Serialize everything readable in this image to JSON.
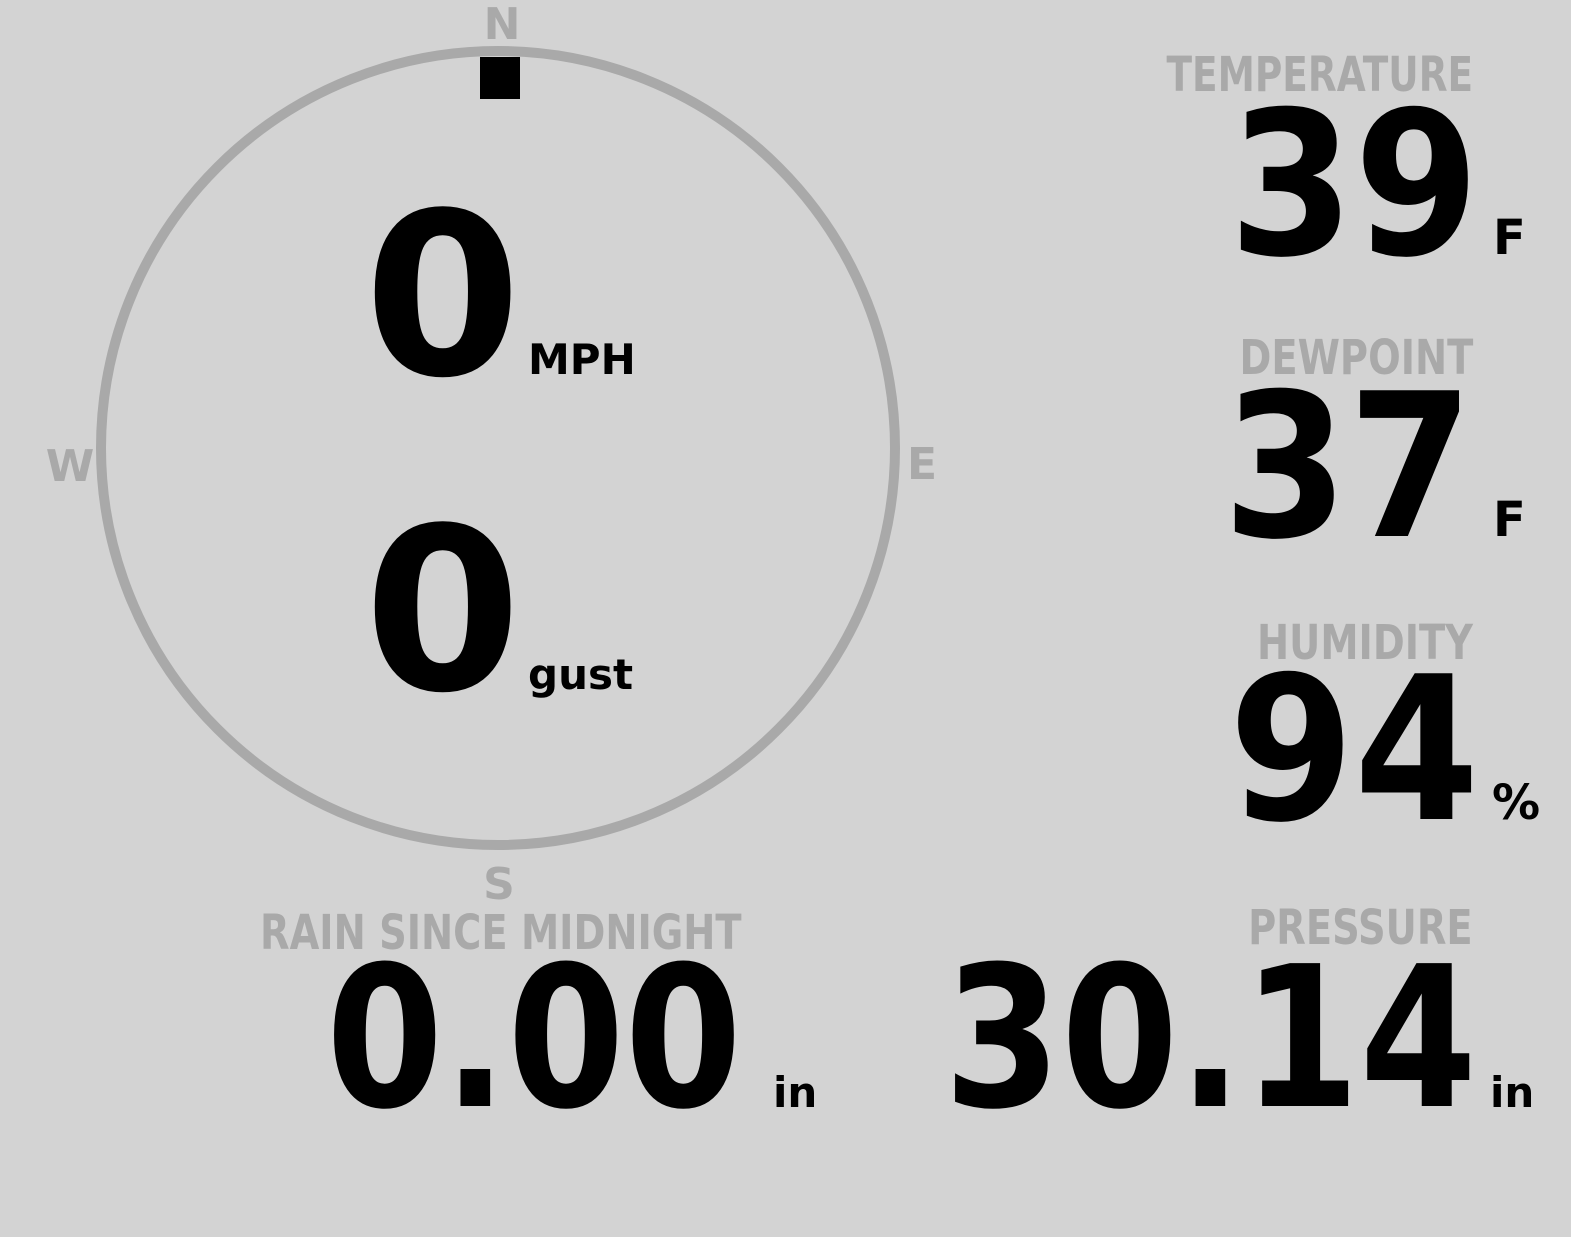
{
  "wind": {
    "speed": "0",
    "speed_unit": "MPH",
    "gust": "0",
    "gust_label": "gust",
    "direction_deg": 0,
    "compass": {
      "n": "N",
      "e": "E",
      "s": "S",
      "w": "W"
    }
  },
  "rain": {
    "label": "RAIN SINCE MIDNIGHT",
    "value": "0.00",
    "unit": "in"
  },
  "temperature": {
    "label": "TEMPERATURE",
    "value": "39",
    "unit": "F"
  },
  "dewpoint": {
    "label": "DEWPOINT",
    "value": "37",
    "unit": "F"
  },
  "humidity": {
    "label": "HUMIDITY",
    "value": "94",
    "unit": "%"
  },
  "pressure": {
    "label": "PRESSURE",
    "value": "30.14",
    "unit": "in"
  },
  "colors": {
    "background": "#d3d3d3",
    "label": "#a9a9a9",
    "value": "#000000"
  }
}
